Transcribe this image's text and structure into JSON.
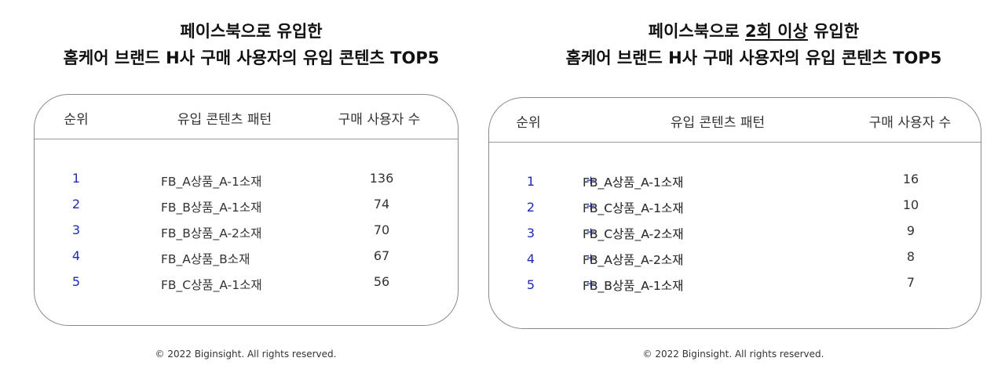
{
  "left": {
    "title": {
      "line1": "페이스북으로 유입한",
      "line2": "홈케어 브랜드 H사 구매 사용자의 유입 콘텐츠 TOP5"
    },
    "table": {
      "headers": [
        "순위",
        "유입 콘텐츠 패턴",
        "구매 사용자 수"
      ],
      "rows": [
        {
          "rank": "1",
          "pattern": "FB_A상품_A-1소재",
          "count": "136"
        },
        {
          "rank": "2",
          "pattern": "FB_B상품_A-1소재",
          "count": "74"
        },
        {
          "rank": "3",
          "pattern": "FB_B상품_A-2소재",
          "count": "70"
        },
        {
          "rank": "4",
          "pattern": "FB_A상품_B소재",
          "count": "67"
        },
        {
          "rank": "5",
          "pattern": "FB_C상품_A-1소재",
          "count": "56"
        }
      ]
    },
    "footer": "© 2022 Biginsight. All rights reserved."
  },
  "right": {
    "title": {
      "line1_pre": "페이스북으로 ",
      "line1_underlined": "2회 이상",
      "line1_post": " 유입한",
      "line2": "홈케어 브랜드 H사 구매 사용자의 유입 콘텐츠 TOP5"
    },
    "table": {
      "headers": [
        "순위",
        "유입 콘텐츠 패턴",
        "구매 사용자 수"
      ],
      "plus": "+",
      "rows": [
        {
          "rank": "1",
          "pattern_a": "FB_A상품_A-1소재",
          "pattern_b": "FB_A상품_A-1소재",
          "count": "16"
        },
        {
          "rank": "2",
          "pattern_a": "FB_C상품_A-1소재",
          "pattern_b": "FB_C상품_A-1소재",
          "count": "10"
        },
        {
          "rank": "3",
          "pattern_a": "FB_C상품_A-2소재",
          "pattern_b": "FB_C상품_A-2소재",
          "count": "9"
        },
        {
          "rank": "4",
          "pattern_a": "FB_A상품_A-2소재",
          "pattern_b": "FB_A상품_A-2소재",
          "count": "8"
        },
        {
          "rank": "5",
          "pattern_a": "FB_B상품_A-1소재",
          "pattern_b": "FB_B상품_A-1소재",
          "count": "7"
        }
      ]
    },
    "footer": "© 2022 Biginsight. All rights reserved."
  },
  "colors": {
    "rank_blue": "#1f2bb0",
    "plus_blue": "#1f2bb0",
    "border_gray": "#8a8a8a",
    "text_dark": "#111111"
  }
}
